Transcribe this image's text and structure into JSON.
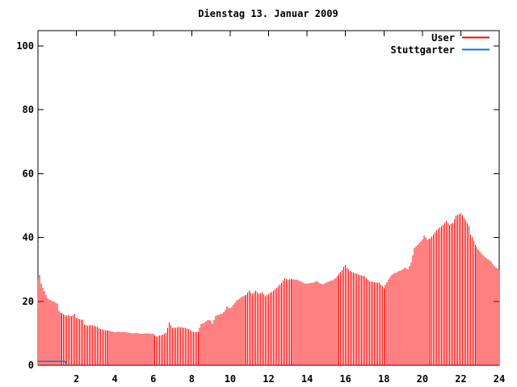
{
  "window": {
    "title": "Dienstag 13. Januar 2009"
  },
  "colors": {
    "user": "#ff0000",
    "stuttgarter": "#0a78d8",
    "axis": "#000000",
    "background": "#ffffff"
  },
  "legend": {
    "position": "top-right",
    "entries": [
      {
        "label": "User",
        "color": "#ff0000"
      },
      {
        "label": "Stuttgarter",
        "color": "#0a78d8"
      }
    ]
  },
  "chart_data": {
    "type": "bar",
    "style": "impulses",
    "title": "Dienstag 13. Januar 2009",
    "xlabel": "",
    "ylabel": "",
    "xlim": [
      0,
      24
    ],
    "ylim": [
      0,
      100
    ],
    "x_ticks": [
      2,
      4,
      6,
      8,
      10,
      12,
      14,
      16,
      18,
      20,
      22,
      24
    ],
    "y_ticks": [
      0,
      20,
      40,
      60,
      80,
      100
    ],
    "grid": false,
    "x_unit": "hour of day",
    "sample_step_minutes": 5,
    "series": [
      {
        "name": "User",
        "color": "#ff0000",
        "style": "impulses",
        "x_start": 0,
        "values": [
          27.0,
          28.3,
          25.5,
          24.3,
          23.2,
          22.0,
          21.0,
          20.6,
          20.3,
          20.1,
          20.0,
          19.6,
          19.3,
          17.0,
          16.6,
          16.3,
          16.0,
          15.7,
          15.5,
          15.6,
          15.4,
          15.4,
          15.7,
          16.0,
          14.8,
          14.6,
          14.4,
          14.3,
          14.3,
          12.8,
          12.6,
          12.4,
          12.5,
          12.6,
          12.5,
          12.4,
          12.3,
          12.0,
          11.6,
          11.4,
          11.3,
          11.1,
          11.0,
          10.9,
          10.8,
          10.7,
          10.6,
          10.5,
          10.4,
          10.4,
          10.5,
          10.5,
          10.4,
          10.3,
          10.3,
          10.3,
          10.2,
          10.2,
          10.1,
          10.0,
          10.0,
          10.1,
          10.1,
          10.0,
          9.9,
          9.9,
          9.9,
          10.0,
          10.0,
          10.0,
          9.9,
          9.8,
          9.8,
          9.4,
          9.0,
          9.1,
          9.3,
          9.4,
          9.6,
          9.9,
          10.2,
          11.8,
          13.4,
          12.5,
          11.6,
          11.7,
          11.8,
          11.9,
          12.0,
          11.9,
          11.9,
          11.8,
          11.7,
          11.5,
          11.4,
          11.0,
          10.6,
          10.5,
          10.4,
          10.4,
          10.5,
          11.7,
          12.9,
          13.1,
          13.3,
          13.7,
          14.2,
          14.1,
          14.0,
          13.0,
          14.2,
          15.4,
          15.6,
          15.8,
          16.0,
          16.2,
          16.7,
          17.3,
          18.4,
          18.0,
          17.8,
          18.3,
          18.9,
          19.6,
          20.3,
          20.6,
          21.0,
          21.3,
          21.6,
          21.8,
          22.0,
          22.7,
          23.4,
          22.9,
          22.4,
          22.8,
          23.3,
          22.8,
          22.3,
          22.6,
          22.9,
          22.2,
          21.6,
          22.0,
          22.4,
          22.7,
          23.0,
          23.4,
          23.8,
          24.3,
          24.8,
          25.2,
          25.7,
          26.5,
          27.3,
          27.0,
          26.8,
          26.9,
          27.0,
          26.9,
          26.9,
          26.8,
          26.8,
          26.5,
          26.3,
          26.0,
          25.8,
          25.6,
          25.5,
          25.6,
          25.7,
          25.8,
          25.9,
          26.1,
          26.4,
          26.0,
          25.6,
          25.5,
          25.4,
          25.6,
          25.9,
          26.1,
          26.3,
          26.5,
          26.7,
          27.0,
          27.4,
          28.0,
          28.6,
          29.2,
          29.8,
          30.8,
          31.4,
          30.4,
          30.0,
          29.6,
          29.3,
          29.0,
          28.8,
          28.6,
          28.4,
          28.3,
          28.1,
          28.0,
          27.8,
          27.3,
          26.8,
          26.3,
          26.2,
          26.1,
          26.0,
          25.9,
          25.9,
          25.9,
          25.3,
          24.8,
          24.1,
          25.2,
          26.0,
          26.9,
          27.6,
          28.3,
          28.6,
          28.9,
          29.1,
          29.4,
          29.6,
          29.8,
          30.0,
          30.6,
          30.3,
          30.0,
          31.1,
          32.2,
          34.5,
          36.8,
          37.2,
          37.6,
          38.2,
          38.8,
          39.4,
          40.7,
          40.0,
          39.3,
          39.5,
          39.8,
          40.3,
          40.9,
          41.6,
          42.3,
          42.7,
          43.2,
          43.6,
          44.0,
          44.6,
          45.2,
          44.6,
          44.0,
          44.3,
          44.6,
          45.7,
          46.8,
          47.1,
          47.3,
          47.6,
          47.0,
          46.1,
          45.3,
          44.4,
          43.5,
          40.9,
          40.2,
          39.0,
          37.7,
          37.0,
          36.3,
          35.6,
          35.0,
          34.5,
          34.0,
          33.6,
          33.2,
          32.8,
          32.5,
          31.7,
          31.0,
          30.6,
          30.3,
          29.8
        ]
      },
      {
        "name": "Stuttgarter",
        "color": "#0a78d8",
        "style": "line",
        "segment": {
          "x_start": 0,
          "x_end": 1.5,
          "value": 1.2,
          "end_value": 0.4
        }
      }
    ]
  }
}
